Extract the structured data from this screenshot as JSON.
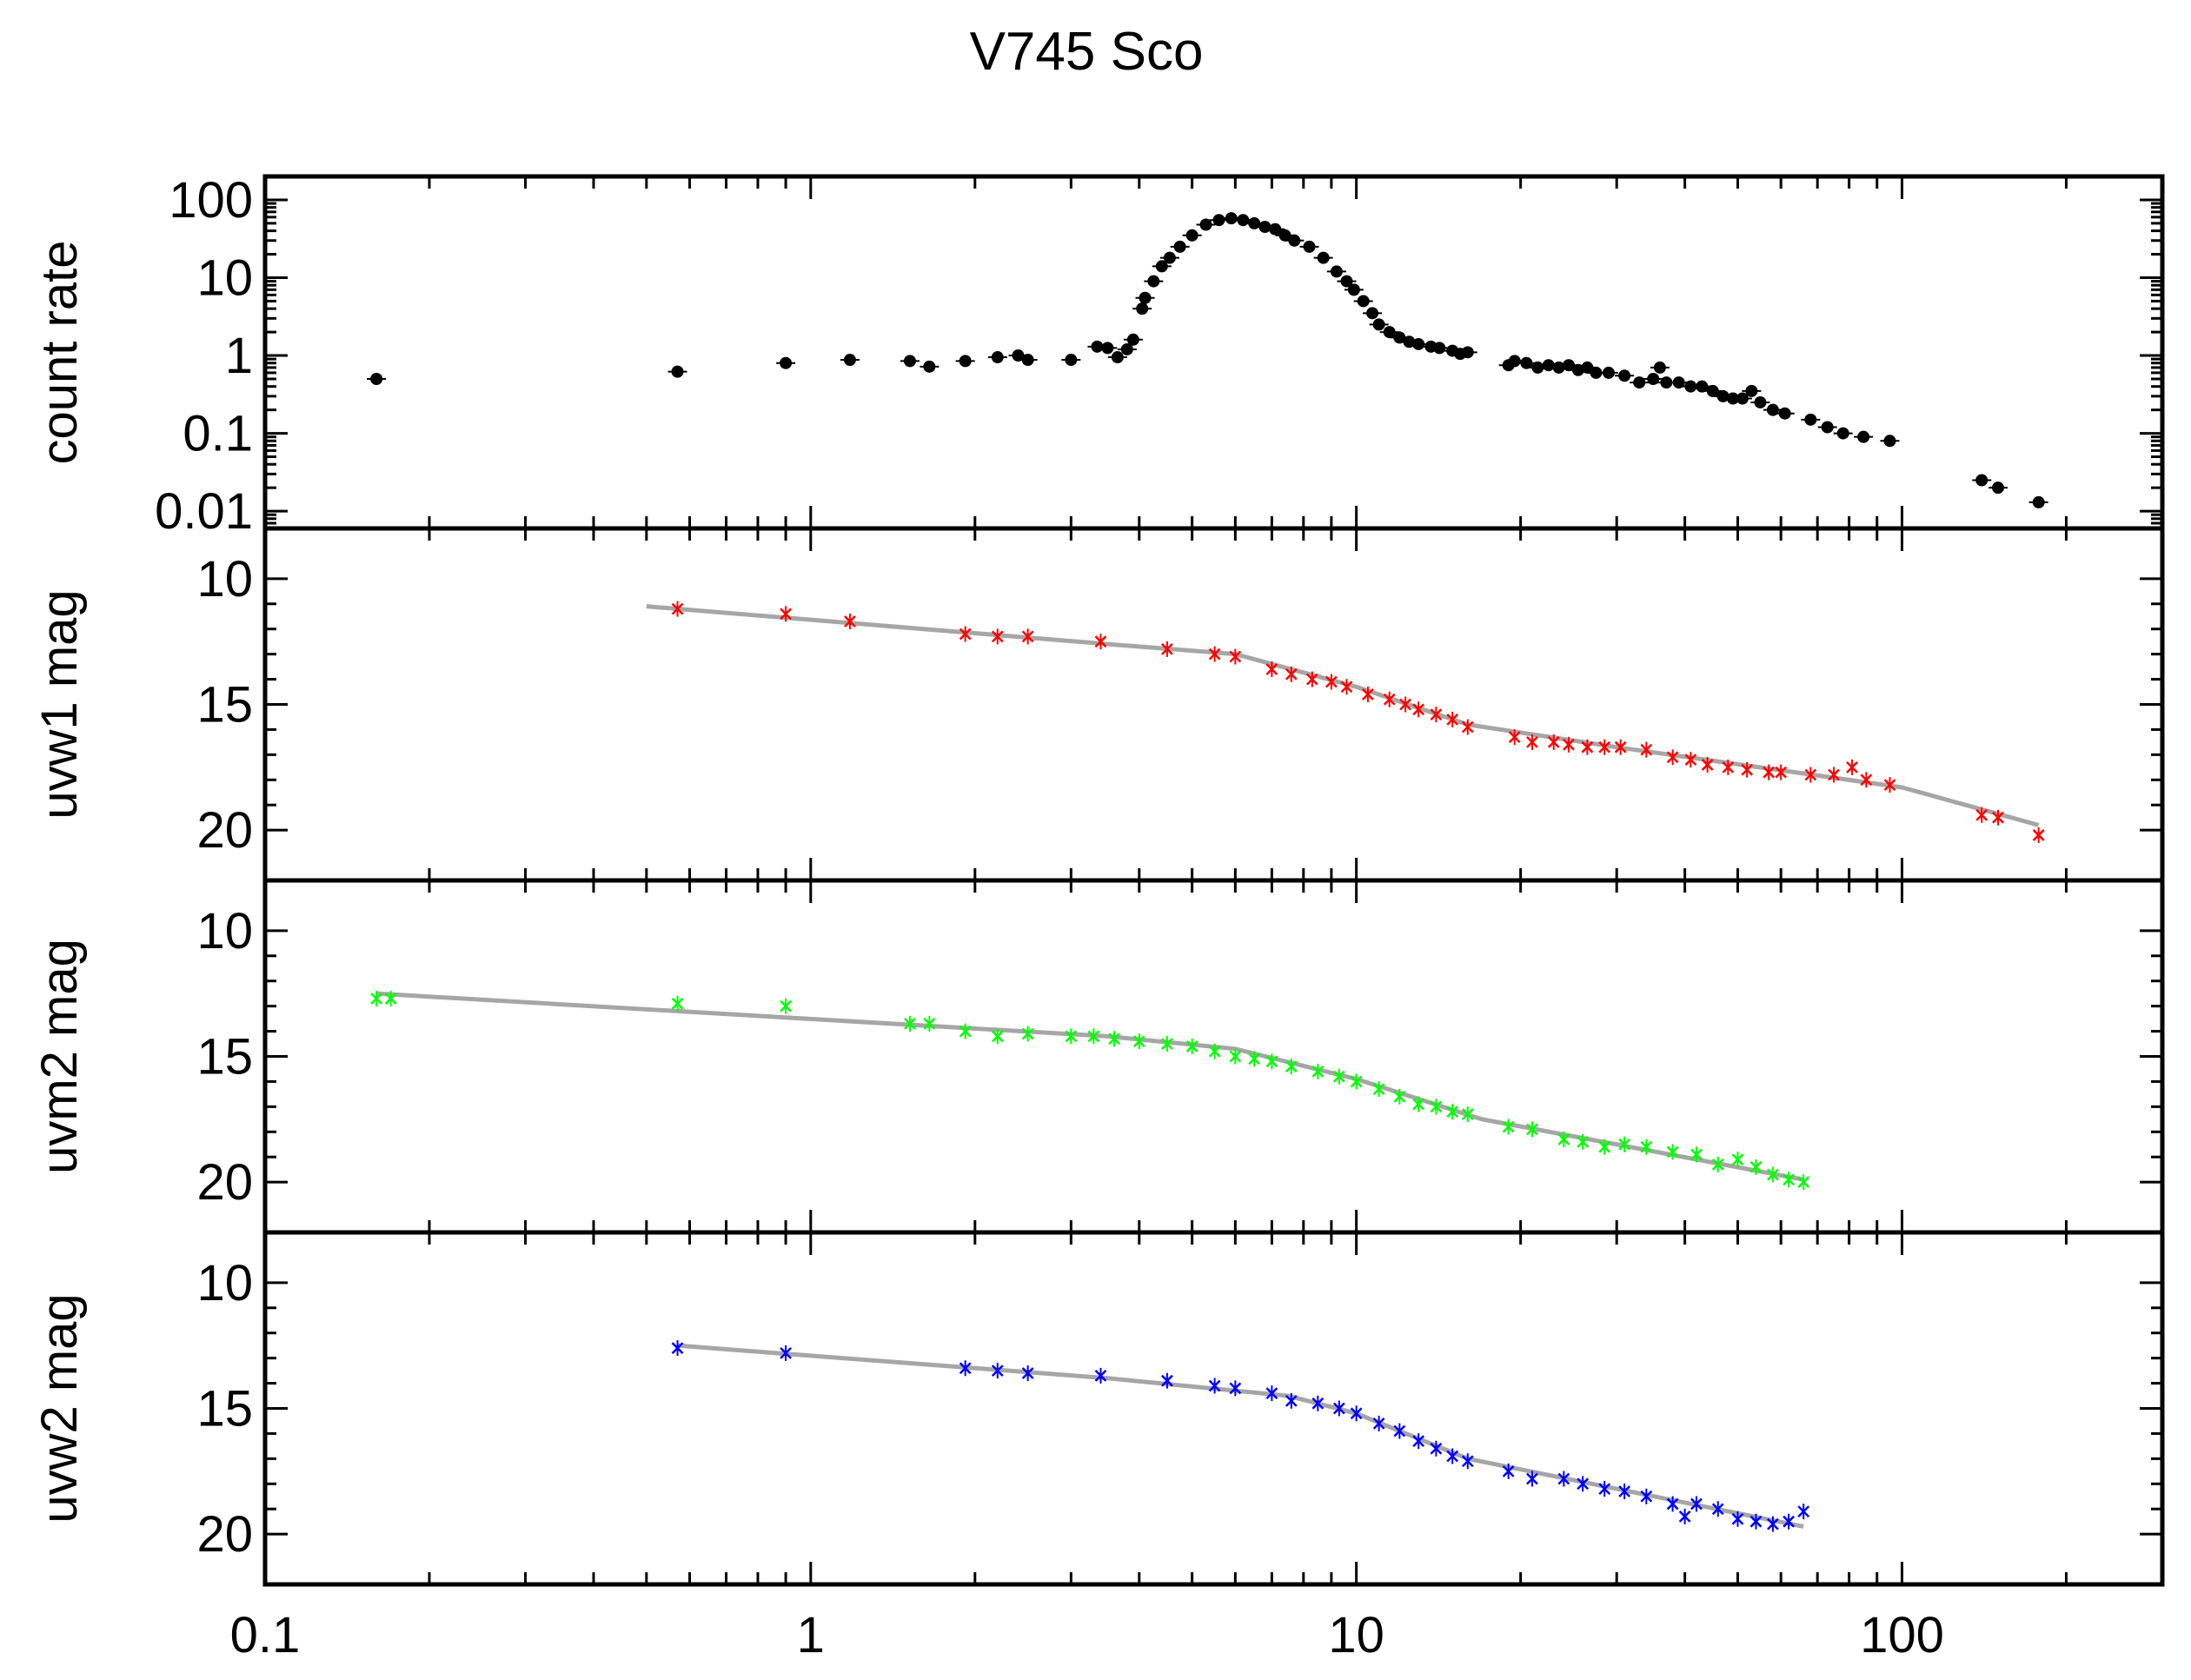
{
  "chart_data": {
    "type": "scatter",
    "title": "V745 Sco",
    "xlabel": "",
    "xscale": "log",
    "xlim": [
      0.1,
      300
    ],
    "xticks": [
      0.1,
      1,
      10,
      100
    ],
    "xtick_labels": [
      "0.1",
      "1",
      "10",
      "100"
    ],
    "grid": false,
    "panels": [
      {
        "id": "count-rate",
        "ylabel": "count rate",
        "yscale": "log",
        "ylim": [
          0.006,
          200
        ],
        "yticks": [
          0.01,
          0.1,
          1,
          10,
          100
        ],
        "ytick_labels": [
          "0.01",
          "0.1",
          "1",
          "10",
          "100"
        ],
        "marker": "dot",
        "color": "#000000",
        "series": [
          {
            "name": "count rate",
            "points": [
              [
                0.16,
                0.5
              ],
              [
                0.57,
                0.62
              ],
              [
                0.9,
                0.8
              ],
              [
                1.18,
                0.88
              ],
              [
                1.52,
                0.85
              ],
              [
                1.65,
                0.72
              ],
              [
                1.92,
                0.85
              ],
              [
                2.2,
                0.95
              ],
              [
                2.4,
                1.0
              ],
              [
                2.5,
                0.88
              ],
              [
                3.0,
                0.88
              ],
              [
                3.35,
                1.3
              ],
              [
                3.5,
                1.25
              ],
              [
                3.65,
                0.95
              ],
              [
                3.8,
                1.2
              ],
              [
                3.9,
                1.6
              ],
              [
                4.05,
                4.0
              ],
              [
                4.1,
                5.5
              ],
              [
                4.25,
                9
              ],
              [
                4.4,
                14
              ],
              [
                4.55,
                18
              ],
              [
                4.75,
                25
              ],
              [
                5.0,
                35
              ],
              [
                5.3,
                48
              ],
              [
                5.6,
                55
              ],
              [
                5.9,
                58
              ],
              [
                6.2,
                55
              ],
              [
                6.5,
                50
              ],
              [
                6.8,
                45
              ],
              [
                7.1,
                42
              ],
              [
                7.4,
                35
              ],
              [
                7.7,
                30
              ],
              [
                8.2,
                25
              ],
              [
                8.7,
                18
              ],
              [
                9.2,
                12
              ],
              [
                9.6,
                9
              ],
              [
                9.9,
                7
              ],
              [
                10.3,
                5
              ],
              [
                10.7,
                3.5
              ],
              [
                11.0,
                2.5
              ],
              [
                11.5,
                2.0
              ],
              [
                12.0,
                1.7
              ],
              [
                12.5,
                1.5
              ],
              [
                13.0,
                1.4
              ],
              [
                13.7,
                1.3
              ],
              [
                14.2,
                1.25
              ],
              [
                15.0,
                1.15
              ],
              [
                15.5,
                1.05
              ],
              [
                16.0,
                1.1
              ],
              [
                19.0,
                0.75
              ],
              [
                19.5,
                0.85
              ],
              [
                20.5,
                0.8
              ],
              [
                21.5,
                0.7
              ],
              [
                22.5,
                0.75
              ],
              [
                23.5,
                0.7
              ],
              [
                24.5,
                0.75
              ],
              [
                25.5,
                0.65
              ],
              [
                26.5,
                0.7
              ],
              [
                27.5,
                0.6
              ],
              [
                29.0,
                0.6
              ],
              [
                31.0,
                0.55
              ],
              [
                33.0,
                0.45
              ],
              [
                35.0,
                0.5
              ],
              [
                36.0,
                0.7
              ],
              [
                37.0,
                0.45
              ],
              [
                39.0,
                0.45
              ],
              [
                41.0,
                0.4
              ],
              [
                43.0,
                0.4
              ],
              [
                45.0,
                0.35
              ],
              [
                47.0,
                0.3
              ],
              [
                49.0,
                0.28
              ],
              [
                51.0,
                0.28
              ],
              [
                53.0,
                0.35
              ],
              [
                55.0,
                0.25
              ],
              [
                58.0,
                0.2
              ],
              [
                61.0,
                0.18
              ],
              [
                68.0,
                0.15
              ],
              [
                73.0,
                0.12
              ],
              [
                78.0,
                0.1
              ],
              [
                85.0,
                0.09
              ],
              [
                95.0,
                0.08
              ],
              [
                140.0,
                0.025
              ],
              [
                150.0,
                0.02
              ],
              [
                178.0,
                0.013
              ]
            ]
          }
        ]
      },
      {
        "id": "uvw1",
        "ylabel": "uvw1 mag",
        "yscale": "linear",
        "yinvert": true,
        "ylim": [
          8.0,
          22.0
        ],
        "yticks": [
          10,
          15,
          20
        ],
        "ytick_labels": [
          "10",
          "15",
          "20"
        ],
        "marker": "cross",
        "color": "#ff0000",
        "series": [
          {
            "name": "uvw1",
            "points": [
              [
                0.57,
                11.2
              ],
              [
                0.9,
                11.4
              ],
              [
                1.18,
                11.7
              ],
              [
                1.92,
                12.2
              ],
              [
                2.2,
                12.3
              ],
              [
                2.5,
                12.3
              ],
              [
                3.4,
                12.5
              ],
              [
                4.5,
                12.8
              ],
              [
                5.5,
                13.0
              ],
              [
                6.0,
                13.1
              ],
              [
                7.0,
                13.6
              ],
              [
                7.6,
                13.8
              ],
              [
                8.3,
                14.0
              ],
              [
                9.0,
                14.1
              ],
              [
                9.6,
                14.3
              ],
              [
                10.5,
                14.6
              ],
              [
                11.5,
                14.8
              ],
              [
                12.3,
                15.0
              ],
              [
                13.0,
                15.2
              ],
              [
                14.0,
                15.4
              ],
              [
                15.0,
                15.6
              ],
              [
                16.0,
                15.9
              ],
              [
                19.5,
                16.3
              ],
              [
                21.0,
                16.5
              ],
              [
                23.0,
                16.5
              ],
              [
                24.5,
                16.6
              ],
              [
                26.5,
                16.7
              ],
              [
                28.5,
                16.7
              ],
              [
                30.5,
                16.7
              ],
              [
                34.0,
                16.8
              ],
              [
                38.0,
                17.1
              ],
              [
                41.0,
                17.2
              ],
              [
                44.0,
                17.4
              ],
              [
                48.0,
                17.5
              ],
              [
                52.0,
                17.6
              ],
              [
                57.0,
                17.7
              ],
              [
                60.0,
                17.7
              ],
              [
                68.0,
                17.8
              ],
              [
                75.0,
                17.8
              ],
              [
                81.0,
                17.5
              ],
              [
                86.0,
                18.0
              ],
              [
                95.0,
                18.2
              ],
              [
                140.0,
                19.4
              ],
              [
                150.0,
                19.5
              ],
              [
                178.0,
                20.2
              ]
            ]
          }
        ],
        "fit": {
          "color": "#a6a6a6",
          "points": [
            [
              0.5,
              11.1
            ],
            [
              3.5,
              12.6
            ],
            [
              6.0,
              13.0
            ],
            [
              10.0,
              14.3
            ],
            [
              16.0,
              15.8
            ],
            [
              30.0,
              16.7
            ],
            [
              100.0,
              18.3
            ],
            [
              178.0,
              19.8
            ]
          ]
        }
      },
      {
        "id": "uvm2",
        "ylabel": "uvm2 mag",
        "yscale": "linear",
        "yinvert": true,
        "ylim": [
          8.0,
          22.0
        ],
        "yticks": [
          10,
          15,
          20
        ],
        "ytick_labels": [
          "10",
          "15",
          "20"
        ],
        "marker": "cross",
        "color": "#00ff00",
        "series": [
          {
            "name": "uvm2",
            "points": [
              [
                0.16,
                12.7
              ],
              [
                0.17,
                12.7
              ],
              [
                0.57,
                12.9
              ],
              [
                0.9,
                13.0
              ],
              [
                1.52,
                13.7
              ],
              [
                1.65,
                13.7
              ],
              [
                1.92,
                14.0
              ],
              [
                2.2,
                14.2
              ],
              [
                2.5,
                14.1
              ],
              [
                3.0,
                14.2
              ],
              [
                3.3,
                14.2
              ],
              [
                3.6,
                14.3
              ],
              [
                4.0,
                14.4
              ],
              [
                4.5,
                14.5
              ],
              [
                5.0,
                14.6
              ],
              [
                5.5,
                14.8
              ],
              [
                6.0,
                15.0
              ],
              [
                6.5,
                15.1
              ],
              [
                7.0,
                15.2
              ],
              [
                7.6,
                15.4
              ],
              [
                8.5,
                15.6
              ],
              [
                9.3,
                15.8
              ],
              [
                10.0,
                16.0
              ],
              [
                11.0,
                16.3
              ],
              [
                12.0,
                16.6
              ],
              [
                13.0,
                16.9
              ],
              [
                14.0,
                17.0
              ],
              [
                15.0,
                17.2
              ],
              [
                16.0,
                17.3
              ],
              [
                19.0,
                17.8
              ],
              [
                21.0,
                17.9
              ],
              [
                24.0,
                18.3
              ],
              [
                26.0,
                18.4
              ],
              [
                28.5,
                18.6
              ],
              [
                31.0,
                18.5
              ],
              [
                34.0,
                18.6
              ],
              [
                38.0,
                18.8
              ],
              [
                42.0,
                18.9
              ],
              [
                46.0,
                19.3
              ],
              [
                50.0,
                19.1
              ],
              [
                54.0,
                19.4
              ],
              [
                58.0,
                19.7
              ],
              [
                62.0,
                19.9
              ],
              [
                66.0,
                20.0
              ]
            ]
          }
        ],
        "fit": {
          "color": "#a6a6a6",
          "points": [
            [
              0.16,
              12.5
            ],
            [
              3.5,
              14.2
            ],
            [
              6.0,
              14.7
            ],
            [
              10.0,
              15.9
            ],
            [
              17.0,
              17.5
            ],
            [
              30.0,
              18.5
            ],
            [
              66.0,
              19.9
            ]
          ]
        }
      },
      {
        "id": "uvw2",
        "ylabel": "uvw2 mag",
        "yscale": "linear",
        "yinvert": true,
        "ylim": [
          8.0,
          22.0
        ],
        "yticks": [
          10,
          15,
          20
        ],
        "ytick_labels": [
          "10",
          "15",
          "20"
        ],
        "marker": "cross",
        "color": "#0000ff",
        "series": [
          {
            "name": "uvw2",
            "points": [
              [
                0.57,
                12.6
              ],
              [
                0.9,
                12.8
              ],
              [
                1.92,
                13.4
              ],
              [
                2.2,
                13.5
              ],
              [
                2.5,
                13.6
              ],
              [
                3.4,
                13.7
              ],
              [
                4.5,
                13.9
              ],
              [
                5.5,
                14.1
              ],
              [
                6.0,
                14.2
              ],
              [
                7.0,
                14.4
              ],
              [
                7.6,
                14.7
              ],
              [
                8.5,
                14.8
              ],
              [
                9.3,
                15.0
              ],
              [
                10.0,
                15.2
              ],
              [
                11.0,
                15.6
              ],
              [
                12.0,
                15.9
              ],
              [
                13.0,
                16.3
              ],
              [
                14.0,
                16.6
              ],
              [
                15.0,
                16.9
              ],
              [
                16.0,
                17.1
              ],
              [
                19.0,
                17.5
              ],
              [
                21.0,
                17.8
              ],
              [
                24.0,
                17.8
              ],
              [
                26.0,
                18.0
              ],
              [
                28.5,
                18.2
              ],
              [
                31.0,
                18.3
              ],
              [
                34.0,
                18.5
              ],
              [
                38.0,
                18.8
              ],
              [
                40.0,
                19.3
              ],
              [
                42.0,
                18.8
              ],
              [
                46.0,
                19.0
              ],
              [
                50.0,
                19.4
              ],
              [
                54.0,
                19.5
              ],
              [
                58.0,
                19.6
              ],
              [
                62.0,
                19.5
              ],
              [
                66.0,
                19.1
              ]
            ]
          }
        ],
        "fit": {
          "color": "#a6a6a6",
          "points": [
            [
              0.57,
              12.5
            ],
            [
              3.5,
              13.8
            ],
            [
              7.5,
              14.5
            ],
            [
              10.0,
              15.2
            ],
            [
              16.0,
              17.0
            ],
            [
              30.0,
              18.2
            ],
            [
              66.0,
              19.7
            ]
          ]
        }
      }
    ]
  }
}
